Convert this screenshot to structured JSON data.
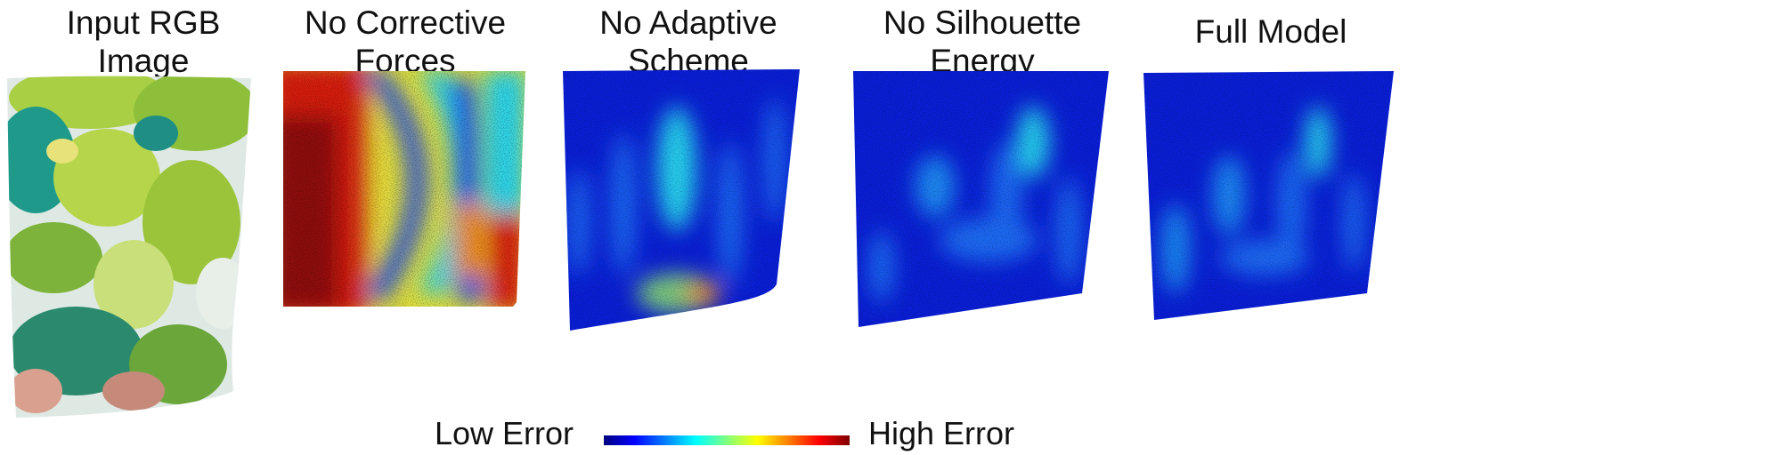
{
  "panels": [
    {
      "id": "input",
      "caption_line1": "Input RGB",
      "caption_line2": "Image"
    },
    {
      "id": "no-corrective",
      "caption_line1": "No Corrective",
      "caption_line2": "Forces"
    },
    {
      "id": "no-adaptive",
      "caption_line1": "No Adaptive",
      "caption_line2": "Scheme"
    },
    {
      "id": "no-silhouette",
      "caption_line1": "No Silhouette",
      "caption_line2": "Energy"
    },
    {
      "id": "full",
      "caption_line1": "Full Model",
      "caption_line2": ""
    }
  ],
  "legend": {
    "low_label": "Low Error",
    "high_label": "High Error",
    "colormap": [
      "#00007f",
      "#0000ff",
      "#007fff",
      "#00ffff",
      "#7fff7f",
      "#ffff00",
      "#ff7f00",
      "#ff0000",
      "#7f0000"
    ]
  },
  "colors": {
    "dark_blue": "#0a1fd8",
    "blue": "#1e4cf0",
    "cyan": "#25d6f0",
    "yellow": "#f4e23a",
    "orange": "#f08a1c",
    "red": "#d81e10",
    "dark_red": "#8f0a0a",
    "leaf_green": "#9bc43a",
    "teal": "#1f9a8a"
  }
}
